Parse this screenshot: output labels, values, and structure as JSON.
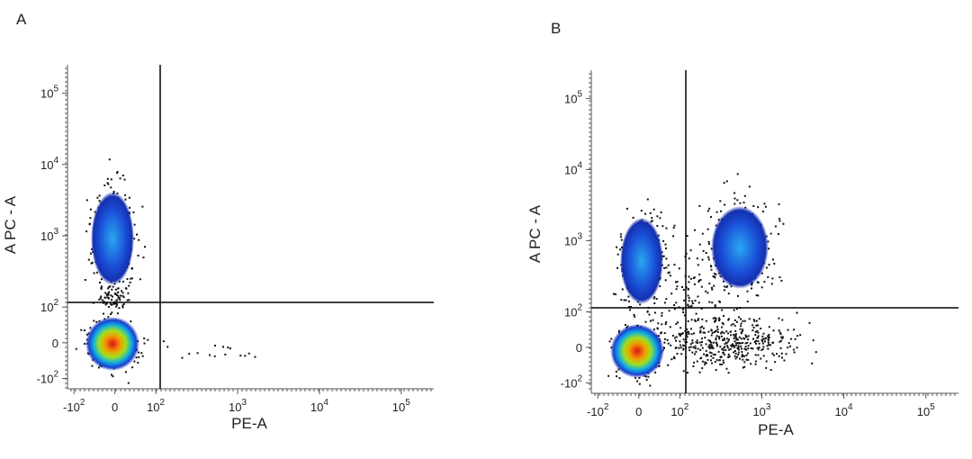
{
  "chart_data": [
    {
      "type": "scatter",
      "title": "A",
      "x_label": "PE-A",
      "y_label": "A PC - A",
      "xlim": [
        -120,
        250000
      ],
      "ylim": [
        -140,
        250000
      ],
      "xticks": [
        {
          "value": -100,
          "label": "-10",
          "exp": "2"
        },
        0,
        {
          "value": 100,
          "label": "10",
          "exp": "2"
        },
        {
          "value": 1000,
          "label": "10",
          "exp": "3"
        },
        {
          "value": 10000,
          "label": "10",
          "exp": "4"
        },
        {
          "value": 100000,
          "label": "10",
          "exp": "5"
        }
      ],
      "yticks": [
        {
          "value": -100,
          "label": "-10",
          "exp": "2"
        },
        0,
        {
          "value": 100,
          "label": "10",
          "exp": "2"
        },
        {
          "value": 1000,
          "label": "10",
          "exp": "3"
        },
        {
          "value": 10000,
          "label": "10",
          "exp": "4"
        },
        {
          "value": 100000,
          "label": "10",
          "exp": "5"
        }
      ]
    },
    {
      "type": "scatter",
      "title": "B",
      "x_label": "PE-A",
      "y_label": "A PC - A",
      "xlim": [
        -120,
        250000
      ],
      "ylim": [
        -140,
        250000
      ],
      "xticks": [
        {
          "value": -100,
          "label": "-10",
          "exp": "2"
        },
        0,
        {
          "value": 100,
          "label": "10",
          "exp": "2"
        },
        {
          "value": 1000,
          "label": "10",
          "exp": "3"
        },
        {
          "value": 10000,
          "label": "10",
          "exp": "4"
        },
        {
          "value": 100000,
          "label": "10",
          "exp": "5"
        }
      ],
      "yticks": [
        {
          "value": -100,
          "label": "-10",
          "exp": "2"
        },
        0,
        {
          "value": 100,
          "label": "10",
          "exp": "2"
        },
        {
          "value": 1000,
          "label": "10",
          "exp": "3"
        },
        {
          "value": 10000,
          "label": "10",
          "exp": "4"
        },
        {
          "value": 100000,
          "label": "10",
          "exp": "5"
        }
      ]
    }
  ]
}
